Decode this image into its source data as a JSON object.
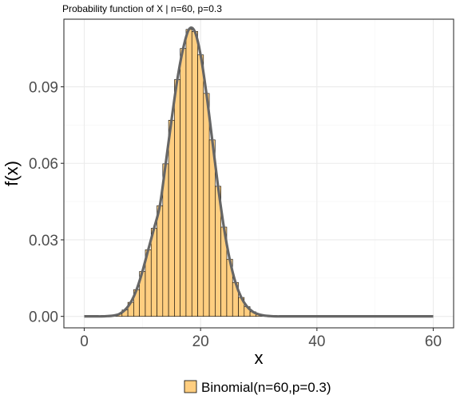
{
  "chart_data": {
    "type": "bar",
    "title": "Probability function of X | n=60, p=0.3",
    "xlabel": "x",
    "ylabel": "f(x)",
    "xlim": [
      -3.5,
      63.5
    ],
    "ylim": [
      -0.0045,
      0.1165
    ],
    "x_ticks": [
      0,
      20,
      40,
      60
    ],
    "x_tick_labels": [
      "0",
      "20",
      "40",
      "60"
    ],
    "y_ticks": [
      0.0,
      0.03,
      0.06,
      0.09
    ],
    "y_tick_labels": [
      "0.00",
      "0.03",
      "0.06",
      "0.09"
    ],
    "grid": true,
    "legend_position": "bottom",
    "series": [
      {
        "name": "Binomial(n=60,p=0.3)",
        "kind": "bar",
        "x": [
          0,
          1,
          2,
          3,
          4,
          5,
          6,
          7,
          8,
          9,
          10,
          11,
          12,
          13,
          14,
          15,
          16,
          17,
          18,
          19,
          20,
          21,
          22,
          23,
          24,
          25,
          26,
          27,
          28,
          29,
          30,
          31,
          32,
          33,
          34,
          35,
          36,
          37,
          38,
          39,
          40,
          41,
          42,
          43,
          44,
          45,
          46,
          47,
          48,
          49,
          50,
          51,
          52,
          53,
          54,
          55,
          56,
          57,
          58,
          59,
          60
        ],
        "values": [
          0,
          0,
          0,
          0,
          0.0001,
          0.0003,
          0.0009,
          0.0025,
          0.0055,
          0.0105,
          0.0176,
          0.0261,
          0.0345,
          0.0434,
          0.0598,
          0.0769,
          0.0928,
          0.105,
          0.1125,
          0.1117,
          0.1025,
          0.0874,
          0.0692,
          0.051,
          0.035,
          0.0224,
          0.0133,
          0.0074,
          0.0038,
          0.0018,
          0.0008,
          0.0003,
          0.0001,
          0,
          0,
          0,
          0,
          0,
          0,
          0,
          0,
          0,
          0,
          0,
          0,
          0,
          0,
          0,
          0,
          0,
          0,
          0,
          0,
          0,
          0,
          0,
          0,
          0,
          0,
          0,
          0
        ]
      },
      {
        "kind": "line",
        "x": [
          0,
          1,
          2,
          3,
          4,
          5,
          6,
          7,
          8,
          9,
          10,
          11,
          12,
          13,
          14,
          15,
          16,
          17,
          18,
          19,
          20,
          21,
          22,
          23,
          24,
          25,
          26,
          27,
          28,
          29,
          30,
          31,
          32,
          33,
          34,
          35,
          36,
          37,
          38,
          39,
          40,
          41,
          42,
          43,
          44,
          45,
          46,
          47,
          48,
          49,
          50,
          51,
          52,
          53,
          54,
          55,
          56,
          57,
          58,
          59,
          60
        ],
        "values": [
          0,
          0,
          0,
          0,
          0.0001,
          0.0003,
          0.0009,
          0.0025,
          0.0055,
          0.0105,
          0.0176,
          0.0261,
          0.0345,
          0.0434,
          0.0598,
          0.0769,
          0.0928,
          0.105,
          0.1125,
          0.1117,
          0.1025,
          0.0874,
          0.0692,
          0.051,
          0.035,
          0.0224,
          0.0133,
          0.0074,
          0.0038,
          0.0018,
          0.0008,
          0.0003,
          0.0001,
          0,
          0,
          0,
          0,
          0,
          0,
          0,
          0,
          0,
          0,
          0,
          0,
          0,
          0,
          0,
          0,
          0,
          0,
          0,
          0,
          0,
          0,
          0,
          0,
          0,
          0,
          0,
          0
        ]
      }
    ]
  },
  "colors": {
    "bar_fill": "#ffce80",
    "bar_stroke": "#000000",
    "line": "#666666",
    "grid_major": "#ebebeb",
    "grid_minor": "#f5f5f5",
    "panel_border": "#333333",
    "tick_text": "#4d4d4d"
  }
}
